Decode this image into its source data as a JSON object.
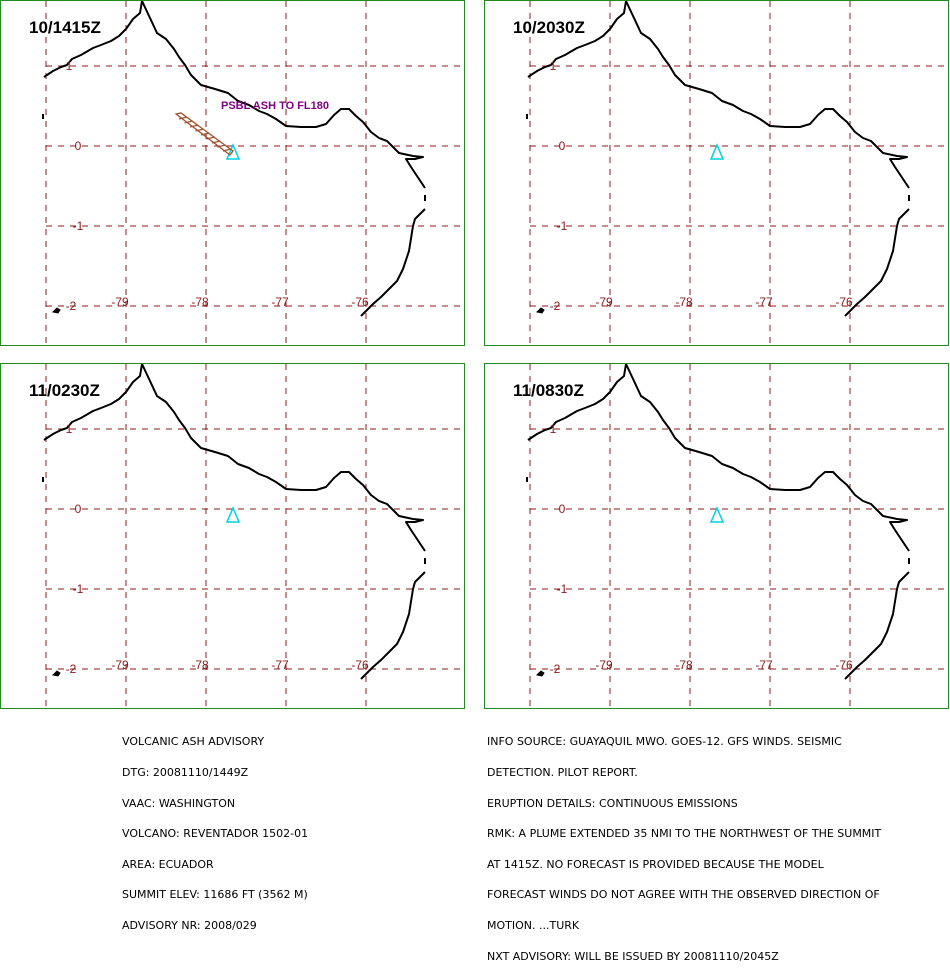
{
  "panels": [
    {
      "title": "10/1415Z",
      "plume_label": "PSBL ASH TO FL180",
      "has_plume": true
    },
    {
      "title": "10/2030Z",
      "plume_label": "",
      "has_plume": false
    },
    {
      "title": "11/0230Z",
      "plume_label": "",
      "has_plume": false
    },
    {
      "title": "11/0830Z",
      "plume_label": "",
      "has_plume": false
    }
  ],
  "map": {
    "lat_labels": [
      "1",
      "0",
      "-1",
      "-2"
    ],
    "lon_labels": [
      "-79",
      "-78",
      "-77",
      "-76"
    ]
  },
  "advisory_left": [
    "VOLCANIC ASH ADVISORY",
    "DTG: 20081110/1449Z",
    "VAAC: WASHINGTON",
    "VOLCANO: REVENTADOR 1502-01",
    "AREA: ECUADOR",
    "SUMMIT ELEV: 11686 FT (3562 M)",
    "ADVISORY NR: 2008/029"
  ],
  "advisory_right": [
    "INFO SOURCE: GUAYAQUIL MWO. GOES-12. GFS WINDS. SEISMIC",
    "DETECTION. PILOT REPORT.",
    "ERUPTION DETAILS: CONTINUOUS EMISSIONS",
    "RMK: A PLUME EXTENDED 35 NMI TO THE NORTHWEST OF THE SUMMIT",
    "AT 1415Z. NO FORECAST IS PROVIDED BECAUSE THE MODEL",
    "FORECAST WINDS DO NOT AGREE WITH THE OBSERVED DIRECTION OF",
    "MOTION. ...TURK",
    "NXT ADVISORY: WILL BE ISSUED BY 20081110/2045Z"
  ],
  "colors": {
    "panel_border": "#228b22",
    "grid": "#8b1a1a",
    "volcano": "#00d0e0",
    "plume": "#a0522d",
    "plume_label": "#800080"
  }
}
